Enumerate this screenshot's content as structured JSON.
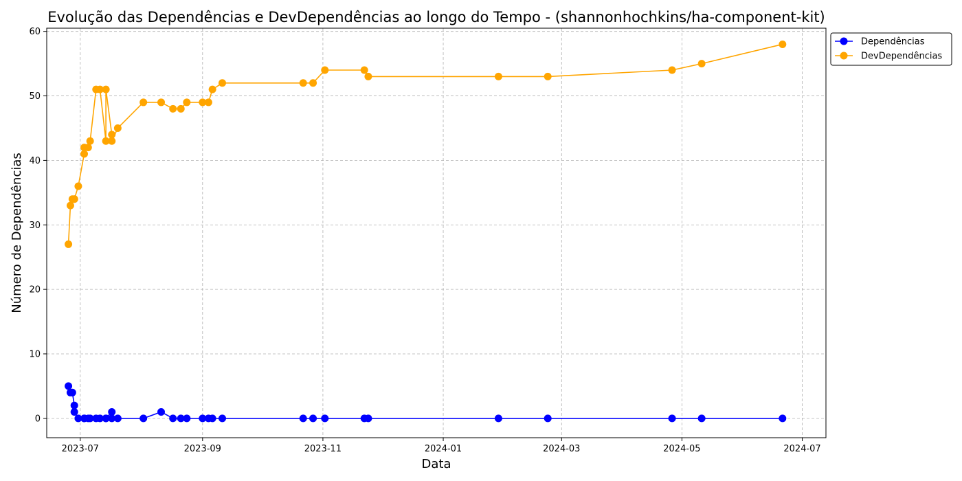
{
  "chart_data": {
    "type": "line",
    "title": "Evolução das Dependências e DevDependências ao longo do Tempo - (shannonhochkins/ha-component-kit)",
    "xlabel": "Data",
    "ylabel": "Número de Dependências",
    "x_ticks": [
      "2023-07",
      "2023-09",
      "2023-11",
      "2024-01",
      "2024-03",
      "2024-05",
      "2024-07"
    ],
    "y_ticks": [
      "0",
      "10",
      "20",
      "30",
      "40",
      "50",
      "60"
    ],
    "xlim": [
      "2023-06-14",
      "2024-07-13"
    ],
    "ylim": [
      -3,
      60.5
    ],
    "grid": true,
    "legend_position": "outside-top-right",
    "x": [
      "2023-06-25",
      "2023-06-26",
      "2023-06-27",
      "2023-06-28",
      "2023-06-28",
      "2023-06-30",
      "2023-07-03",
      "2023-07-03",
      "2023-07-05",
      "2023-07-06",
      "2023-07-09",
      "2023-07-11",
      "2023-07-14",
      "2023-07-14",
      "2023-07-17",
      "2023-07-17",
      "2023-07-20",
      "2023-08-02",
      "2023-08-11",
      "2023-08-17",
      "2023-08-21",
      "2023-08-24",
      "2023-09-01",
      "2023-09-04",
      "2023-09-06",
      "2023-09-11",
      "2023-10-22",
      "2023-10-27",
      "2023-11-02",
      "2023-11-22",
      "2023-11-24",
      "2024-01-29",
      "2024-02-23",
      "2024-04-26",
      "2024-05-11",
      "2024-06-21"
    ],
    "series": [
      {
        "name": "Dependências",
        "color": "#0000ff",
        "values": [
          5,
          4,
          4,
          2,
          1,
          0,
          0,
          0,
          0,
          0,
          0,
          0,
          0,
          0,
          1,
          0,
          0,
          0,
          1,
          0,
          0,
          0,
          0,
          0,
          0,
          0,
          0,
          0,
          0,
          0,
          0,
          0,
          0,
          0,
          0,
          0
        ]
      },
      {
        "name": "DevDependências",
        "color": "#ffa500",
        "values": [
          27,
          33,
          34,
          34,
          34,
          36,
          41,
          42,
          42,
          43,
          51,
          51,
          43,
          51,
          44,
          43,
          45,
          49,
          49,
          48,
          48,
          49,
          49,
          49,
          51,
          52,
          52,
          52,
          54,
          54,
          53,
          53,
          53,
          54,
          55,
          58
        ]
      }
    ]
  }
}
